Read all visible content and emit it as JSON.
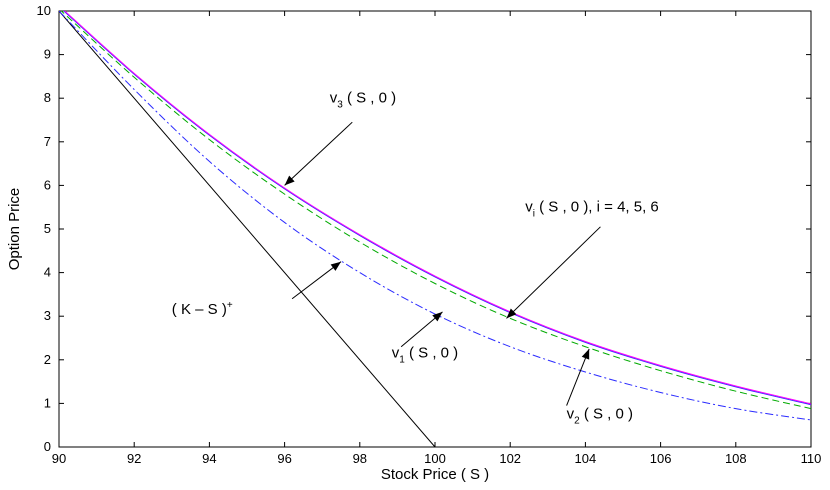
{
  "chart_data": {
    "type": "line",
    "title": "",
    "xlabel": "Stock Price ( S )",
    "ylabel": "Option Price",
    "xlim": [
      90,
      110
    ],
    "ylim": [
      0,
      10
    ],
    "xticks": [
      90,
      92,
      94,
      96,
      98,
      100,
      102,
      104,
      106,
      108,
      110
    ],
    "yticks": [
      0,
      1,
      2,
      3,
      4,
      5,
      6,
      7,
      8,
      9,
      10
    ],
    "grid": false,
    "legend": "none",
    "series": [
      {
        "key": "payoff",
        "color": "#000000",
        "style": "solid",
        "x": [
          90,
          100
        ],
        "y": [
          10,
          0
        ]
      },
      {
        "key": "v1",
        "color": "#2b2bff",
        "style": "dashdot",
        "x": [
          90,
          92,
          94,
          96,
          98,
          100,
          102,
          104,
          106,
          108,
          110
        ],
        "y": [
          10.0,
          8.2,
          6.55,
          5.15,
          4.0,
          3.05,
          2.3,
          1.72,
          1.25,
          0.88,
          0.62
        ]
      },
      {
        "key": "v2",
        "color": "#00aa00",
        "style": "dashed",
        "x": [
          90,
          92,
          94,
          96,
          98,
          100,
          102,
          104,
          106,
          108,
          110
        ],
        "y": [
          10.05,
          8.48,
          7.05,
          5.8,
          4.7,
          3.75,
          2.95,
          2.3,
          1.75,
          1.28,
          0.88
        ]
      },
      {
        "key": "v3",
        "color": "#3333ff",
        "style": "solid",
        "x": [
          90,
          92,
          94,
          96,
          98,
          100,
          102,
          104,
          106,
          108,
          110
        ],
        "y": [
          10.1,
          8.55,
          7.15,
          5.92,
          4.85,
          3.9,
          3.08,
          2.4,
          1.85,
          1.38,
          0.97
        ]
      },
      {
        "key": "v4to6",
        "color": "#ff00ff",
        "style": "solid",
        "x": [
          90,
          92,
          94,
          96,
          98,
          100,
          102,
          104,
          106,
          108,
          110
        ],
        "y": [
          10.12,
          8.57,
          7.17,
          5.94,
          4.87,
          3.92,
          3.1,
          2.42,
          1.87,
          1.4,
          0.99
        ]
      }
    ],
    "annotations": [
      {
        "id": "ann-v3",
        "text": "v",
        "sub": "3",
        "rest": " ( S , 0 )",
        "text_at": [
          97.2,
          7.9
        ],
        "arrow_from": [
          97.8,
          7.45
        ],
        "arrow_to": [
          96.0,
          6.0
        ]
      },
      {
        "id": "ann-vi",
        "text": "v",
        "sub": "i",
        "rest": " ( S , 0 ), i = 4, 5, 6",
        "text_at": [
          102.4,
          5.4
        ],
        "arrow_from": [
          104.4,
          5.05
        ],
        "arrow_to": [
          101.9,
          2.95
        ]
      },
      {
        "id": "ann-payoff",
        "text": "( K – S )",
        "sup": "+",
        "rest": "",
        "text_at": [
          93.0,
          3.05
        ],
        "arrow_from": [
          96.2,
          3.4
        ],
        "arrow_to": [
          97.5,
          4.25
        ]
      },
      {
        "id": "ann-v1",
        "text": "v",
        "sub": "1",
        "rest": " ( S , 0 )",
        "text_at": [
          98.85,
          2.05
        ],
        "arrow_from": [
          99.1,
          2.3
        ],
        "arrow_to": [
          100.2,
          3.1
        ]
      },
      {
        "id": "ann-v2",
        "text": "v",
        "sub": "2",
        "rest": " ( S , 0 )",
        "text_at": [
          103.5,
          0.65
        ],
        "arrow_from": [
          103.5,
          0.95
        ],
        "arrow_to": [
          104.1,
          2.25
        ]
      }
    ]
  }
}
